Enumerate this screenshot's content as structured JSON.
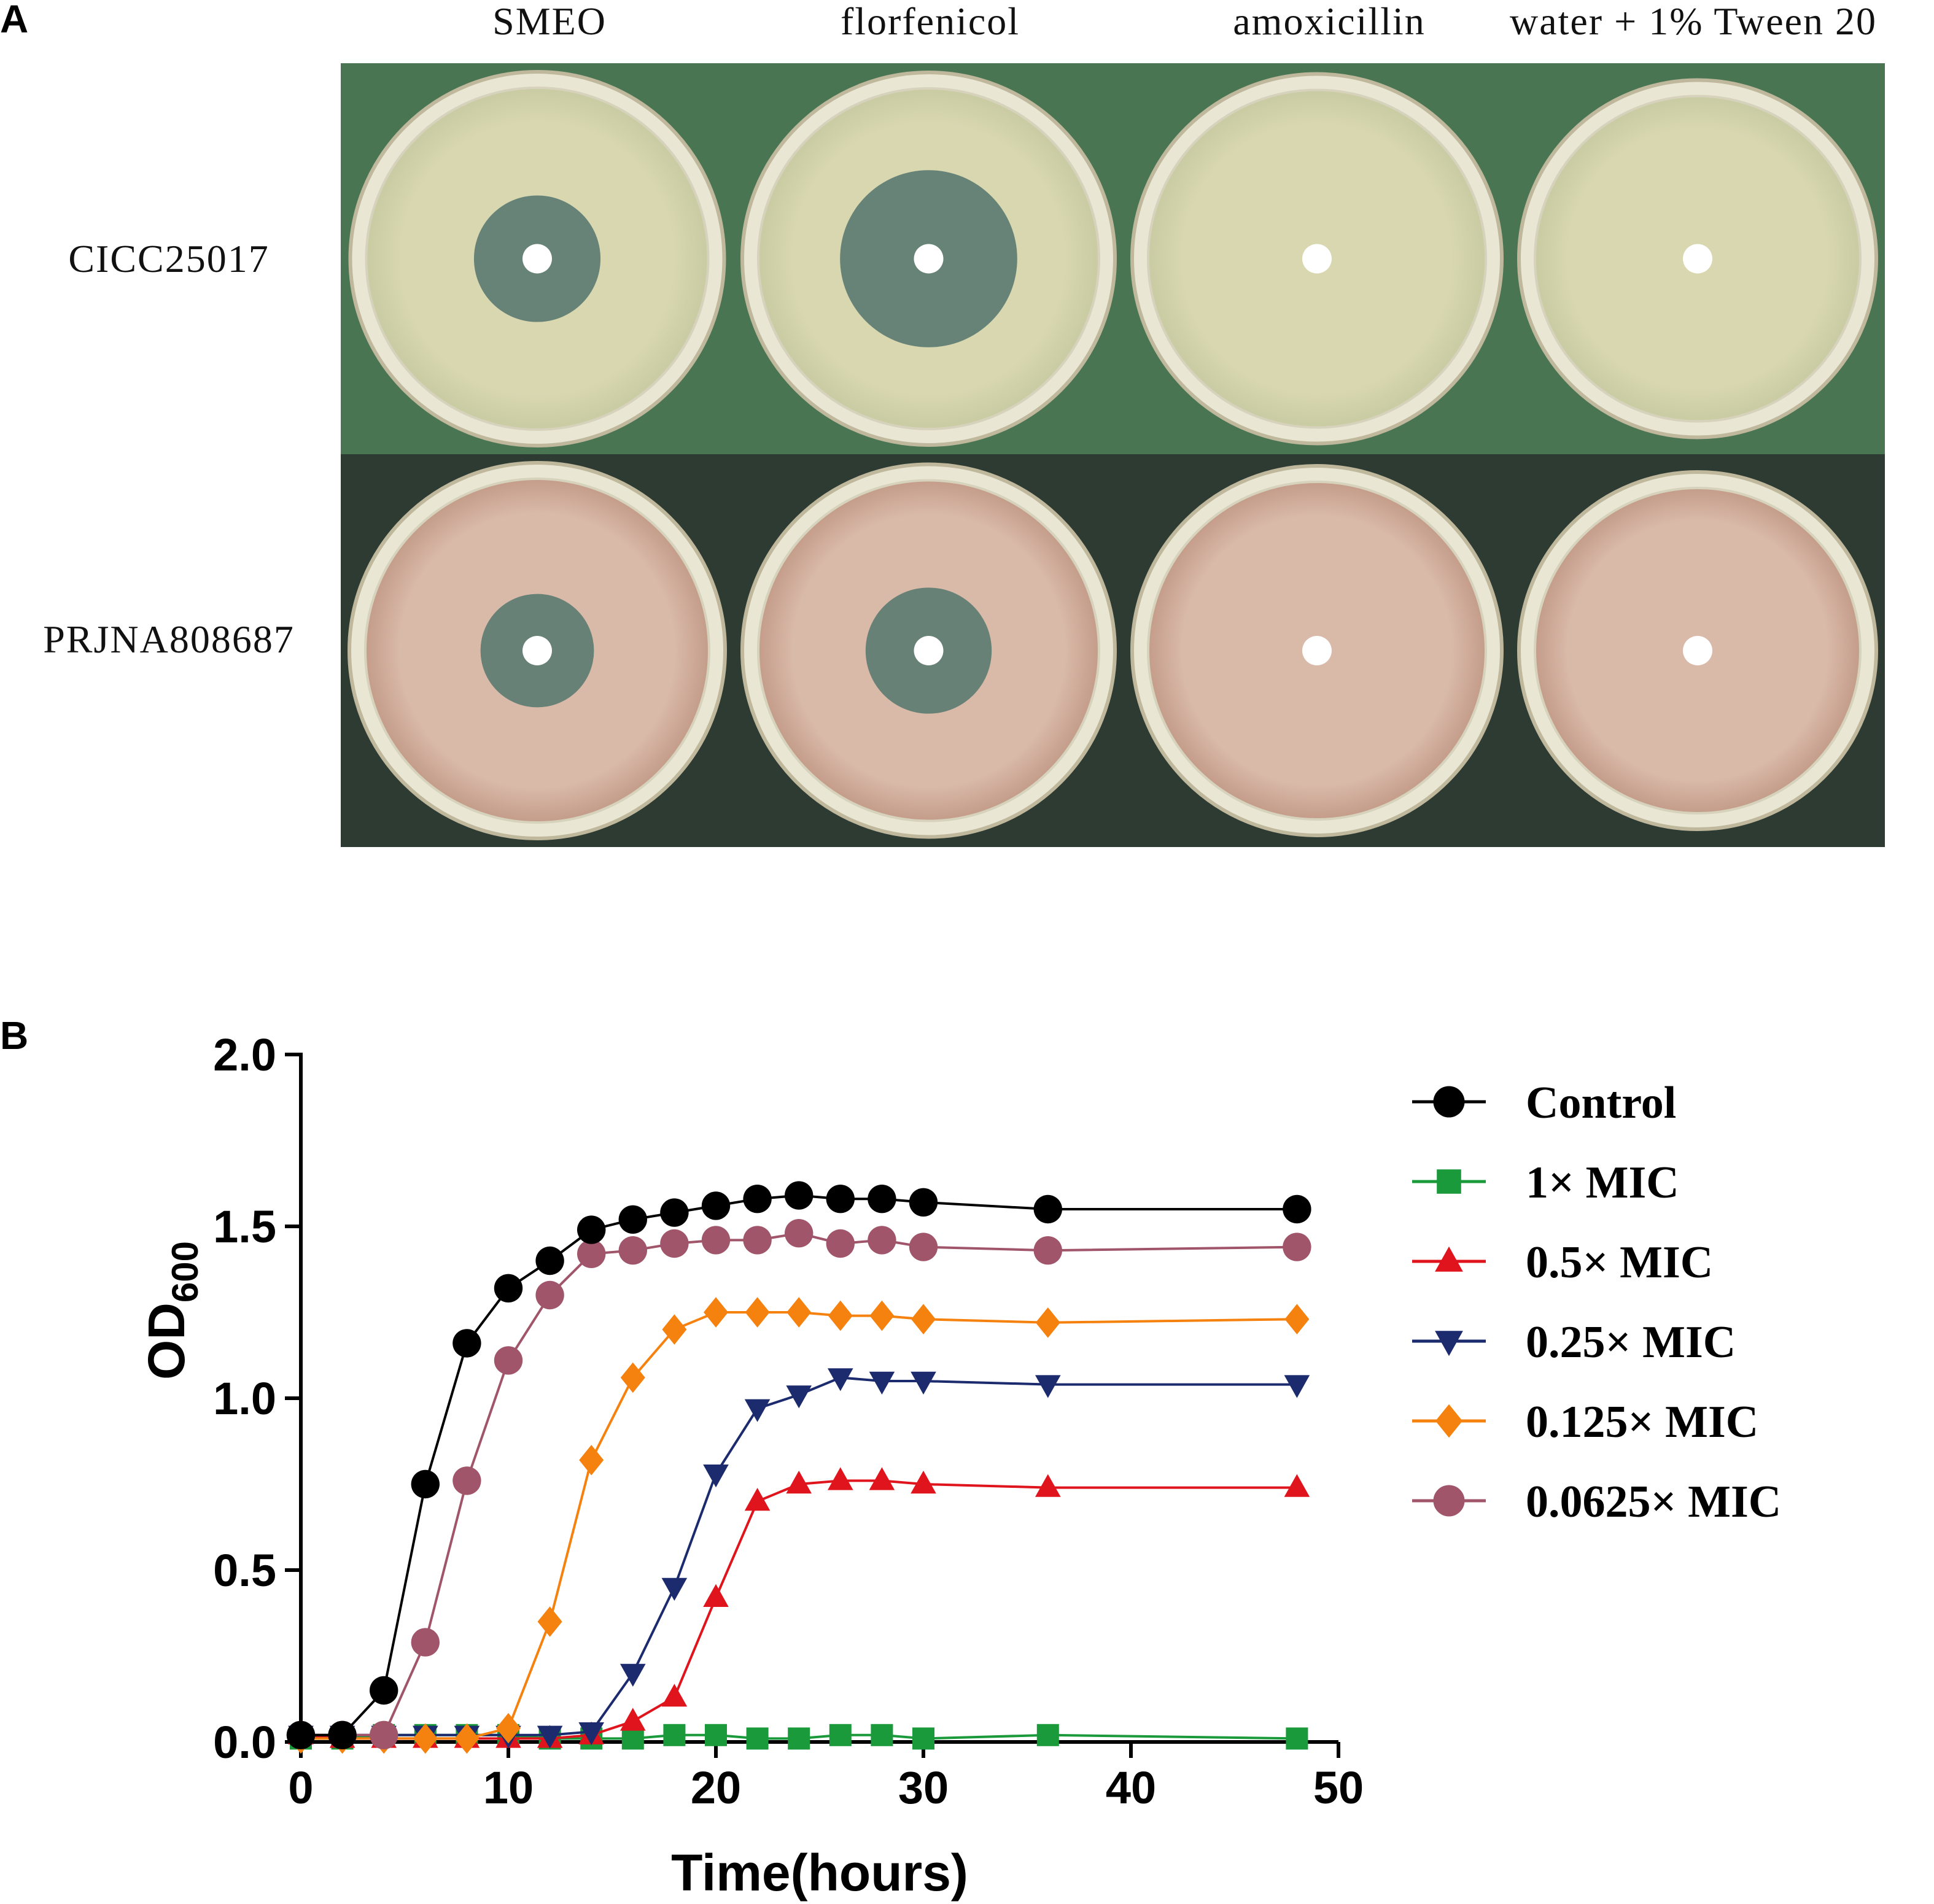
{
  "panel_a": {
    "letter": "A",
    "columns": [
      "SMEO",
      "florfenicol",
      "amoxicillin",
      "water + 1% Tween 20"
    ],
    "rows": [
      "CICC25017",
      "PRJNA808687"
    ],
    "colors": {
      "row1_bg": "#4a7553",
      "row2_bg": "#2e3b33",
      "row1_agar": "#d8d7b0",
      "row2_agar": "#d9b9a8",
      "zone": "#5d7c72",
      "disc": "#ffffff"
    },
    "plates": [
      [
        {
          "zone_relative": 0.37
        },
        {
          "zone_relative": 0.52
        },
        {
          "zone_relative": 0
        },
        {
          "zone_relative": 0
        }
      ],
      [
        {
          "zone_relative": 0.33
        },
        {
          "zone_relative": 0.37
        },
        {
          "zone_relative": 0
        },
        {
          "zone_relative": 0
        }
      ]
    ]
  },
  "panel_b": {
    "letter": "B"
  },
  "chart_data": {
    "type": "line",
    "title": "",
    "xlabel": "Time(hours)",
    "ylabel": "OD",
    "ylabel_subscript": "600",
    "xlim": [
      0,
      50
    ],
    "ylim": [
      0,
      2.0
    ],
    "xticks": [
      "0",
      "10",
      "20",
      "30",
      "40",
      "50"
    ],
    "yticks": [
      "0.0",
      "0.5",
      "1.0",
      "1.5",
      "2.0"
    ],
    "grid": false,
    "legend_position": "right",
    "x": [
      0,
      2,
      4,
      6,
      8,
      10,
      12,
      14,
      16,
      18,
      20,
      22,
      24,
      26,
      28,
      30,
      36,
      48
    ],
    "series": [
      {
        "name": "Control",
        "color": "#000000",
        "marker": "circle",
        "values": [
          0.02,
          0.02,
          0.15,
          0.75,
          1.16,
          1.32,
          1.4,
          1.49,
          1.52,
          1.54,
          1.56,
          1.58,
          1.59,
          1.58,
          1.58,
          1.57,
          1.55,
          1.55
        ]
      },
      {
        "name": "1× MIC",
        "color": "#1a9a3a",
        "marker": "square",
        "values": [
          0.01,
          0.01,
          0.02,
          0.02,
          0.02,
          0.02,
          0.01,
          0.01,
          0.01,
          0.02,
          0.02,
          0.01,
          0.01,
          0.02,
          0.02,
          0.01,
          0.02,
          0.01
        ]
      },
      {
        "name": "0.5× MIC",
        "color": "#e0141c",
        "marker": "triangle-up",
        "values": [
          0.02,
          0.01,
          0.01,
          0.01,
          0.01,
          0.01,
          0.01,
          0.02,
          0.06,
          0.13,
          0.42,
          0.7,
          0.75,
          0.76,
          0.76,
          0.75,
          0.74,
          0.74
        ]
      },
      {
        "name": "0.25× MIC",
        "color": "#1c2a6e",
        "marker": "triangle-down",
        "values": [
          0.02,
          0.02,
          0.02,
          0.02,
          0.02,
          0.02,
          0.02,
          0.03,
          0.2,
          0.45,
          0.78,
          0.97,
          1.01,
          1.06,
          1.05,
          1.05,
          1.04,
          1.04
        ]
      },
      {
        "name": "0.125× MIC",
        "color": "#f5820f",
        "marker": "diamond",
        "values": [
          0.01,
          0.01,
          0.01,
          0.01,
          0.01,
          0.04,
          0.35,
          0.82,
          1.06,
          1.2,
          1.25,
          1.25,
          1.25,
          1.24,
          1.24,
          1.23,
          1.22,
          1.23
        ]
      },
      {
        "name": "0.0625× MIC",
        "color": "#a0556a",
        "marker": "circle",
        "values": [
          0.02,
          0.02,
          0.02,
          0.29,
          0.76,
          1.11,
          1.3,
          1.42,
          1.43,
          1.45,
          1.46,
          1.46,
          1.48,
          1.45,
          1.46,
          1.44,
          1.43,
          1.44
        ]
      }
    ]
  }
}
